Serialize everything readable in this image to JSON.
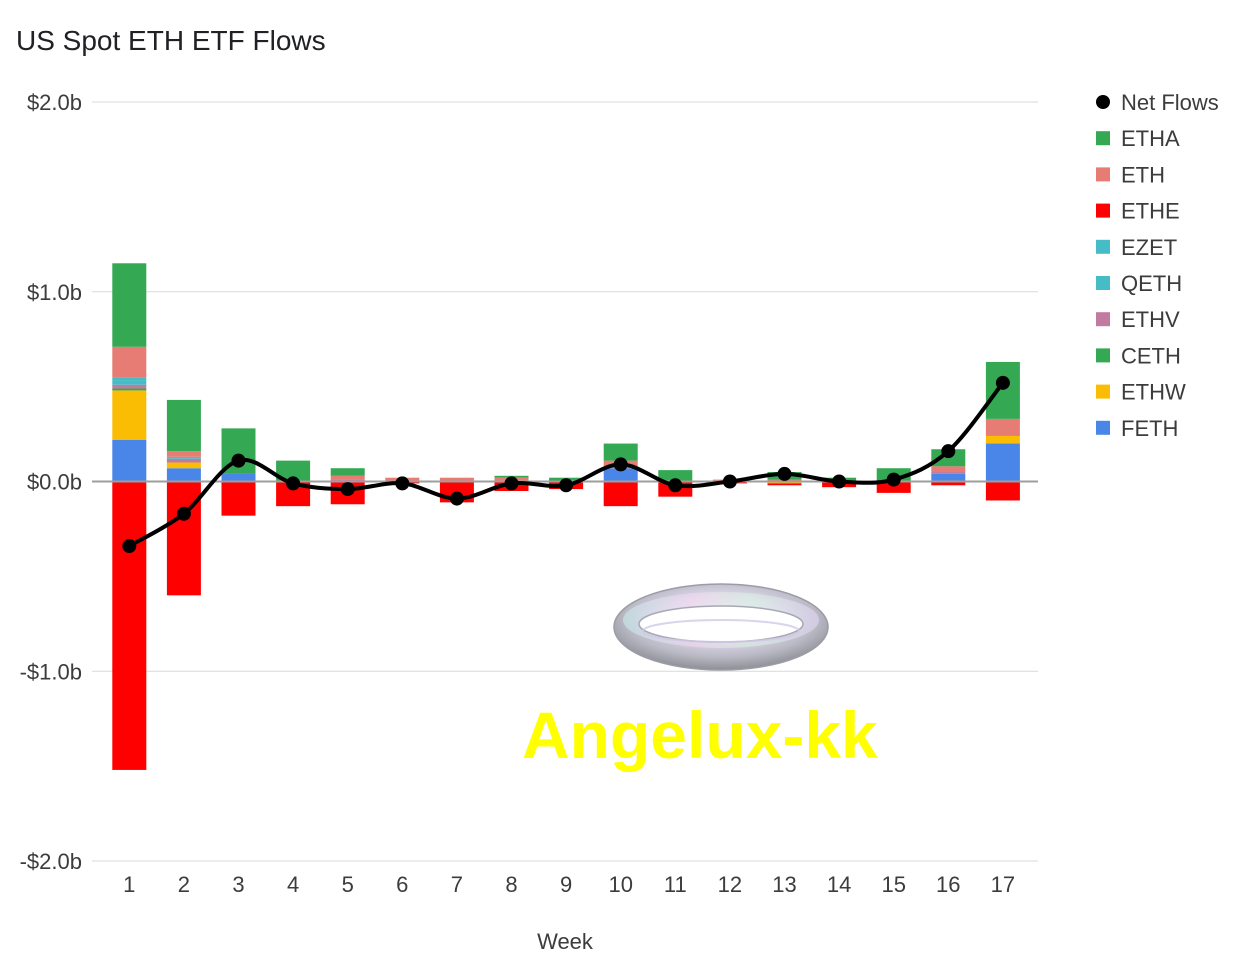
{
  "chart_data": {
    "type": "bar",
    "title": "US Spot ETH ETF Flows",
    "xlabel": "Week",
    "ylabel": "",
    "ylim": [
      -2.0,
      2.0
    ],
    "y_ticks": [
      {
        "value": 2.0,
        "label": "$2.0b"
      },
      {
        "value": 1.0,
        "label": "$1.0b"
      },
      {
        "value": 0.0,
        "label": "$0.0b"
      },
      {
        "value": -1.0,
        "label": "-$1.0b"
      },
      {
        "value": -2.0,
        "label": "-$2.0b"
      }
    ],
    "stacked": true,
    "grid": true,
    "legend_position": "right",
    "categories": [
      "1",
      "2",
      "3",
      "4",
      "5",
      "6",
      "7",
      "8",
      "9",
      "10",
      "11",
      "12",
      "13",
      "14",
      "15",
      "16",
      "17"
    ],
    "series": [
      {
        "name": "FETH",
        "color": "#4a86e8",
        "values": [
          0.22,
          0.07,
          0.04,
          0.0,
          0.0,
          0.0,
          0.0,
          0.0,
          0.0,
          0.07,
          0.0,
          0.0,
          0.0,
          0.0,
          0.0,
          0.04,
          0.2
        ]
      },
      {
        "name": "ETHW",
        "color": "#fbbc04",
        "values": [
          0.26,
          0.03,
          0.0,
          0.0,
          0.0,
          0.0,
          0.0,
          0.0,
          0.0,
          0.0,
          0.0,
          0.0,
          -0.01,
          0.0,
          0.0,
          0.0,
          0.04
        ]
      },
      {
        "name": "CETH",
        "color": "#34a853",
        "values": [
          0.01,
          0.0,
          0.0,
          0.0,
          0.0,
          0.0,
          0.0,
          0.0,
          0.0,
          0.0,
          0.0,
          0.0,
          0.0,
          0.0,
          0.0,
          0.0,
          0.0
        ]
      },
      {
        "name": "ETHV",
        "color": "#c27ba0",
        "values": [
          0.02,
          0.02,
          0.0,
          0.0,
          0.01,
          0.0,
          0.0,
          0.0,
          0.0,
          0.0,
          0.0,
          0.0,
          0.0,
          0.0,
          0.0,
          0.01,
          0.0
        ]
      },
      {
        "name": "QETH",
        "color": "#46bdc6",
        "values": [
          0.02,
          0.0,
          0.0,
          0.0,
          0.0,
          0.0,
          0.0,
          0.0,
          0.0,
          0.0,
          0.0,
          0.0,
          0.0,
          0.0,
          0.0,
          0.0,
          0.0
        ]
      },
      {
        "name": "EZET",
        "color": "#46bdc6",
        "values": [
          0.02,
          0.01,
          0.0,
          0.0,
          0.0,
          0.0,
          0.0,
          0.0,
          0.0,
          0.0,
          0.0,
          0.0,
          0.0,
          0.0,
          0.0,
          0.0,
          0.0
        ]
      },
      {
        "name": "ETHE",
        "color": "#ff0000",
        "values": [
          -1.52,
          -0.6,
          -0.18,
          -0.13,
          -0.12,
          -0.01,
          -0.11,
          -0.05,
          -0.04,
          -0.13,
          -0.08,
          -0.01,
          -0.01,
          -0.03,
          -0.06,
          -0.02,
          -0.1
        ]
      },
      {
        "name": "ETH",
        "color": "#e67c73",
        "values": [
          0.16,
          0.03,
          0.0,
          0.0,
          0.02,
          0.02,
          0.02,
          0.02,
          0.0,
          0.04,
          0.0,
          0.01,
          0.01,
          0.0,
          0.0,
          0.03,
          0.09
        ]
      },
      {
        "name": "ETHA",
        "color": "#34a853",
        "values": [
          0.44,
          0.27,
          0.24,
          0.11,
          0.04,
          0.0,
          0.0,
          0.01,
          0.02,
          0.09,
          0.06,
          0.0,
          0.04,
          0.02,
          0.07,
          0.09,
          0.3
        ]
      }
    ],
    "net_flows": {
      "name": "Net Flows",
      "color": "#000000",
      "values": [
        -0.34,
        -0.17,
        0.11,
        -0.01,
        -0.04,
        -0.01,
        -0.09,
        -0.01,
        -0.02,
        0.09,
        -0.02,
        0.0,
        0.04,
        0.0,
        0.01,
        0.16,
        0.52
      ]
    },
    "legend_order": [
      "Net Flows",
      "ETHA",
      "ETH",
      "ETHE",
      "EZET",
      "QETH",
      "ETHV",
      "CETH",
      "ETHW",
      "FETH"
    ]
  },
  "watermark": {
    "text": "Angelux-kk"
  }
}
